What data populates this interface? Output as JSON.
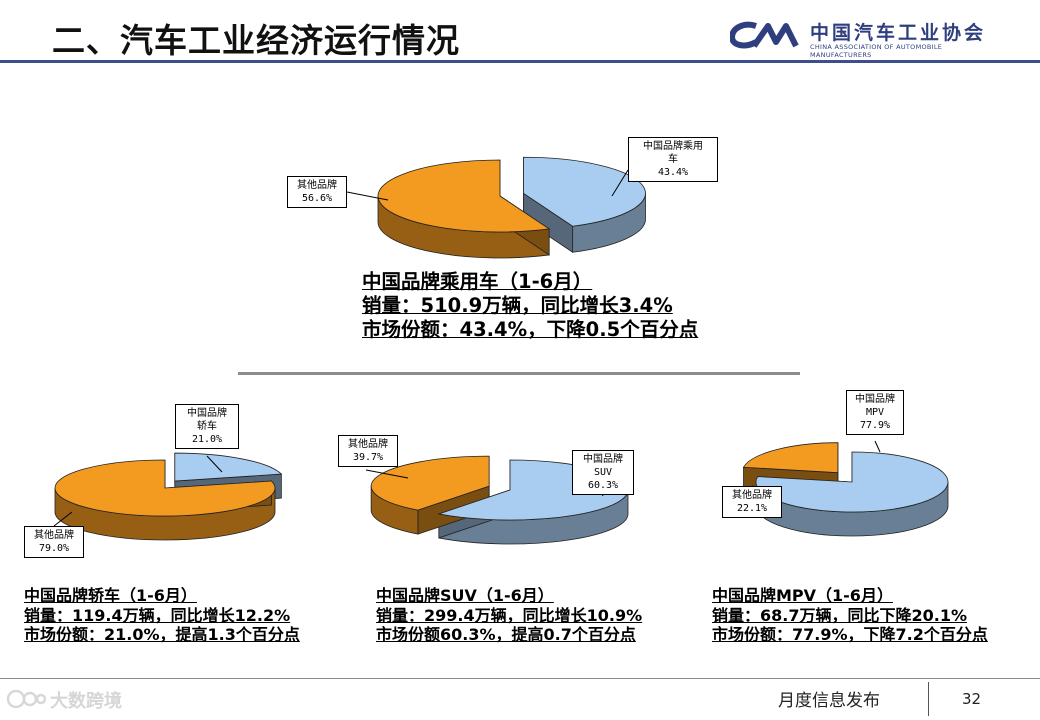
{
  "header": {
    "title": "二、汽车工业经济运行情况",
    "logo_cn": "中国汽车工业协会",
    "logo_en": "CHINA ASSOCIATION OF AUTOMOBILE MANUFACTURERS"
  },
  "colors": {
    "domestic": "#a9cdf0",
    "domestic_side": "#4a6686",
    "others": "#f39a20",
    "others_side": "#9a5a12",
    "header_rule": "#3c4e8c"
  },
  "chart_data": [
    {
      "type": "pie",
      "id": "passenger",
      "series": [
        {
          "name": "中国品牌乘用车",
          "value": 43.4,
          "label": "43.4%",
          "color": "#a9cdf0"
        },
        {
          "name": "其他品牌",
          "value": 56.6,
          "label": "56.6%",
          "color": "#f39a20"
        }
      ],
      "caption": [
        "中国品牌乘用车（1-6月）",
        "销量：510.9万辆，同比增长3.4%",
        "市场份额：43.4%，下降0.5个百分点"
      ]
    },
    {
      "type": "pie",
      "id": "sedan",
      "series": [
        {
          "name": "中国品牌轿车",
          "value": 21.0,
          "label": "21.0%",
          "color": "#a9cdf0"
        },
        {
          "name": "其他品牌",
          "value": 79.0,
          "label": "79.0%",
          "color": "#f39a20"
        }
      ],
      "caption": [
        "中国品牌轿车（1-6月）",
        "销量：119.4万辆，同比增长12.2%",
        "市场份额：21.0%，提高1.3个百分点"
      ]
    },
    {
      "type": "pie",
      "id": "suv",
      "series": [
        {
          "name": "中国品牌SUV",
          "value": 60.3,
          "label": "60.3%",
          "color": "#a9cdf0"
        },
        {
          "name": "其他品牌",
          "value": 39.7,
          "label": "39.7%",
          "color": "#f39a20"
        }
      ],
      "caption": [
        "中国品牌SUV（1-6月）",
        "销量：299.4万辆，同比增长10.9%",
        "市场份额60.3%，提高0.7个百分点"
      ]
    },
    {
      "type": "pie",
      "id": "mpv",
      "series": [
        {
          "name": "中国品牌MPV",
          "value": 77.9,
          "label": "77.9%",
          "color": "#a9cdf0"
        },
        {
          "name": "其他品牌",
          "value": 22.1,
          "label": "22.1%",
          "color": "#f39a20"
        }
      ],
      "caption": [
        "中国品牌MPV（1-6月）",
        "销量：68.7万辆，同比下降20.1%",
        "市场份额：77.9%，下降7.2个百分点"
      ]
    }
  ],
  "labels": {
    "passenger_domestic": [
      "中国品牌乘用",
      "车",
      "43.4%"
    ],
    "passenger_others": [
      "其他品牌",
      "56.6%"
    ],
    "sedan_domestic": [
      "中国品牌",
      "轿车",
      "21.0%"
    ],
    "sedan_others": [
      "其他品牌",
      "79.0%"
    ],
    "suv_domestic": [
      "中国品牌",
      "SUV",
      "60.3%"
    ],
    "suv_others": [
      "其他品牌",
      "39.7%"
    ],
    "mpv_domestic": [
      "中国品牌",
      "MPV",
      "77.9%"
    ],
    "mpv_others": [
      "其他品牌",
      "22.1%"
    ]
  },
  "footer": {
    "text": "月度信息发布",
    "page": "32",
    "watermark": "大数跨境"
  }
}
